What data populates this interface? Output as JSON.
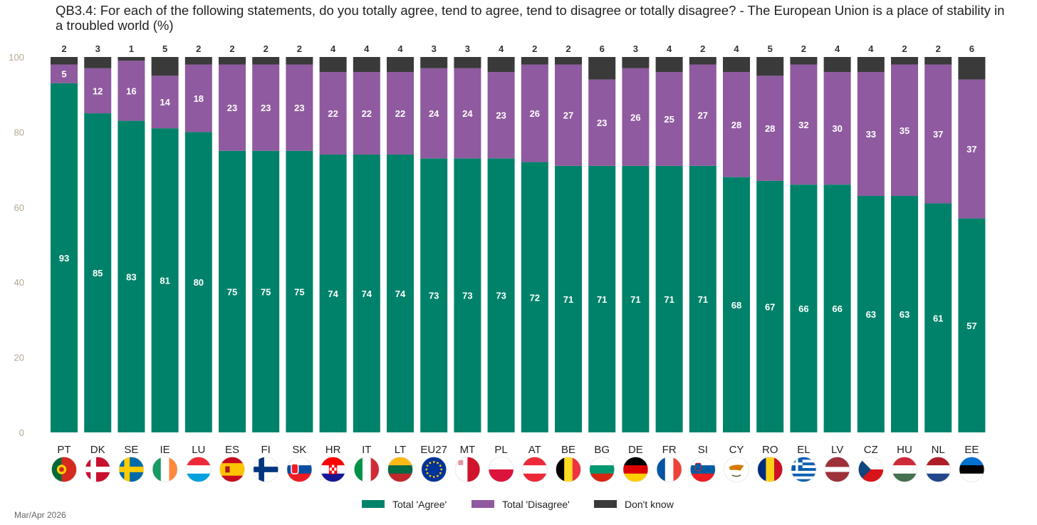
{
  "title": "QB3.4: For each of the following statements, do you totally agree, tend to agree, tend to disagree or totally disagree? - The European Union is a place of stability in a troubled world (%)",
  "footer_date": "Mar/Apr 2026",
  "colors": {
    "agree": "#00826a",
    "disagree": "#8f5a9f",
    "dont_know": "#3a3a3a"
  },
  "chart_data": {
    "type": "bar",
    "stacked": true,
    "orientation": "vertical",
    "ylim": [
      0,
      100
    ],
    "yticks": [
      0,
      20,
      40,
      60,
      80,
      100
    ],
    "categories": [
      "PT",
      "DK",
      "SE",
      "IE",
      "LU",
      "ES",
      "FI",
      "SK",
      "HR",
      "IT",
      "LT",
      "EU27",
      "MT",
      "PL",
      "AT",
      "BE",
      "BG",
      "DE",
      "FR",
      "SI",
      "CY",
      "RO",
      "EL",
      "LV",
      "CZ",
      "HU",
      "NL",
      "EE"
    ],
    "flags": [
      "portugal-flag",
      "denmark-flag",
      "sweden-flag",
      "ireland-flag",
      "luxembourg-flag",
      "spain-flag",
      "finland-flag",
      "slovakia-flag",
      "croatia-flag",
      "italy-flag",
      "lithuania-flag",
      "eu-flag",
      "malta-flag",
      "poland-flag",
      "austria-flag",
      "belgium-flag",
      "bulgaria-flag",
      "germany-flag",
      "france-flag",
      "slovenia-flag",
      "cyprus-flag",
      "romania-flag",
      "greece-flag",
      "latvia-flag",
      "czechia-flag",
      "hungary-flag",
      "netherlands-flag",
      "estonia-flag"
    ],
    "series": [
      {
        "name": "Total 'Agree'",
        "values": [
          93,
          85,
          83,
          81,
          80,
          75,
          75,
          75,
          74,
          74,
          74,
          73,
          73,
          73,
          72,
          71,
          71,
          71,
          71,
          71,
          68,
          67,
          66,
          66,
          63,
          63,
          61,
          57
        ]
      },
      {
        "name": "Total 'Disagree'",
        "values": [
          5,
          12,
          16,
          14,
          18,
          23,
          23,
          23,
          22,
          22,
          22,
          24,
          24,
          23,
          26,
          27,
          23,
          26,
          25,
          27,
          28,
          28,
          32,
          30,
          33,
          35,
          37,
          37
        ]
      },
      {
        "name": "Don't know",
        "values": [
          2,
          3,
          1,
          5,
          2,
          2,
          2,
          2,
          4,
          4,
          4,
          3,
          3,
          4,
          2,
          2,
          6,
          3,
          4,
          2,
          4,
          5,
          2,
          4,
          4,
          2,
          2,
          6
        ]
      }
    ],
    "legend_position": "bottom-center",
    "grid": false
  }
}
